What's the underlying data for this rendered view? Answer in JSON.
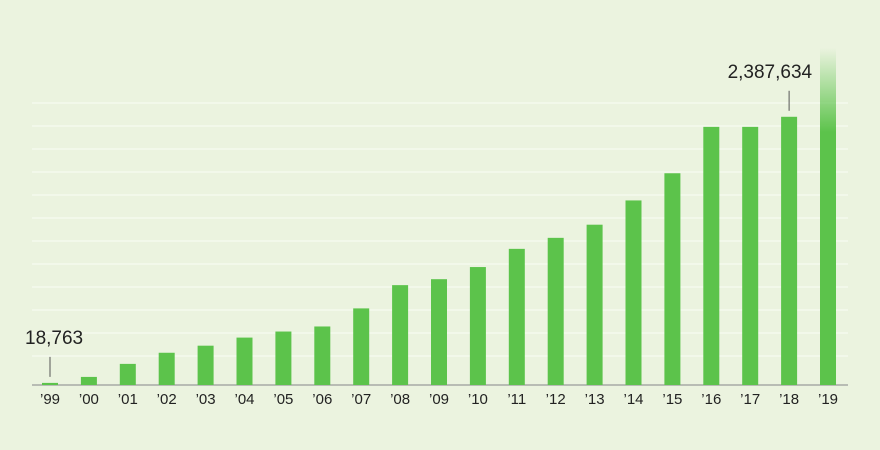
{
  "chart_data": {
    "type": "bar",
    "categories": [
      "’99",
      "’00",
      "’01",
      "’02",
      "’03",
      "’04",
      "’05",
      "’06",
      "’07",
      "’08",
      "’09",
      "’10",
      "’11",
      "’12",
      "’13",
      "’14",
      "’15",
      "’16",
      "’17",
      "’18",
      "’19"
    ],
    "values": [
      18763,
      72000,
      188000,
      287000,
      350000,
      422000,
      476000,
      521000,
      682000,
      889000,
      942000,
      1050000,
      1212000,
      1310000,
      1427000,
      1643000,
      1885000,
      2298000,
      2298000,
      2387634,
      3000000
    ],
    "value_labels": [
      "18,763",
      null,
      null,
      null,
      null,
      null,
      null,
      null,
      null,
      null,
      null,
      null,
      null,
      null,
      null,
      null,
      null,
      null,
      null,
      "2,387,634",
      null
    ],
    "color": "#5cc34b",
    "ylim": [
      0,
      3000000
    ],
    "grid": true
  }
}
